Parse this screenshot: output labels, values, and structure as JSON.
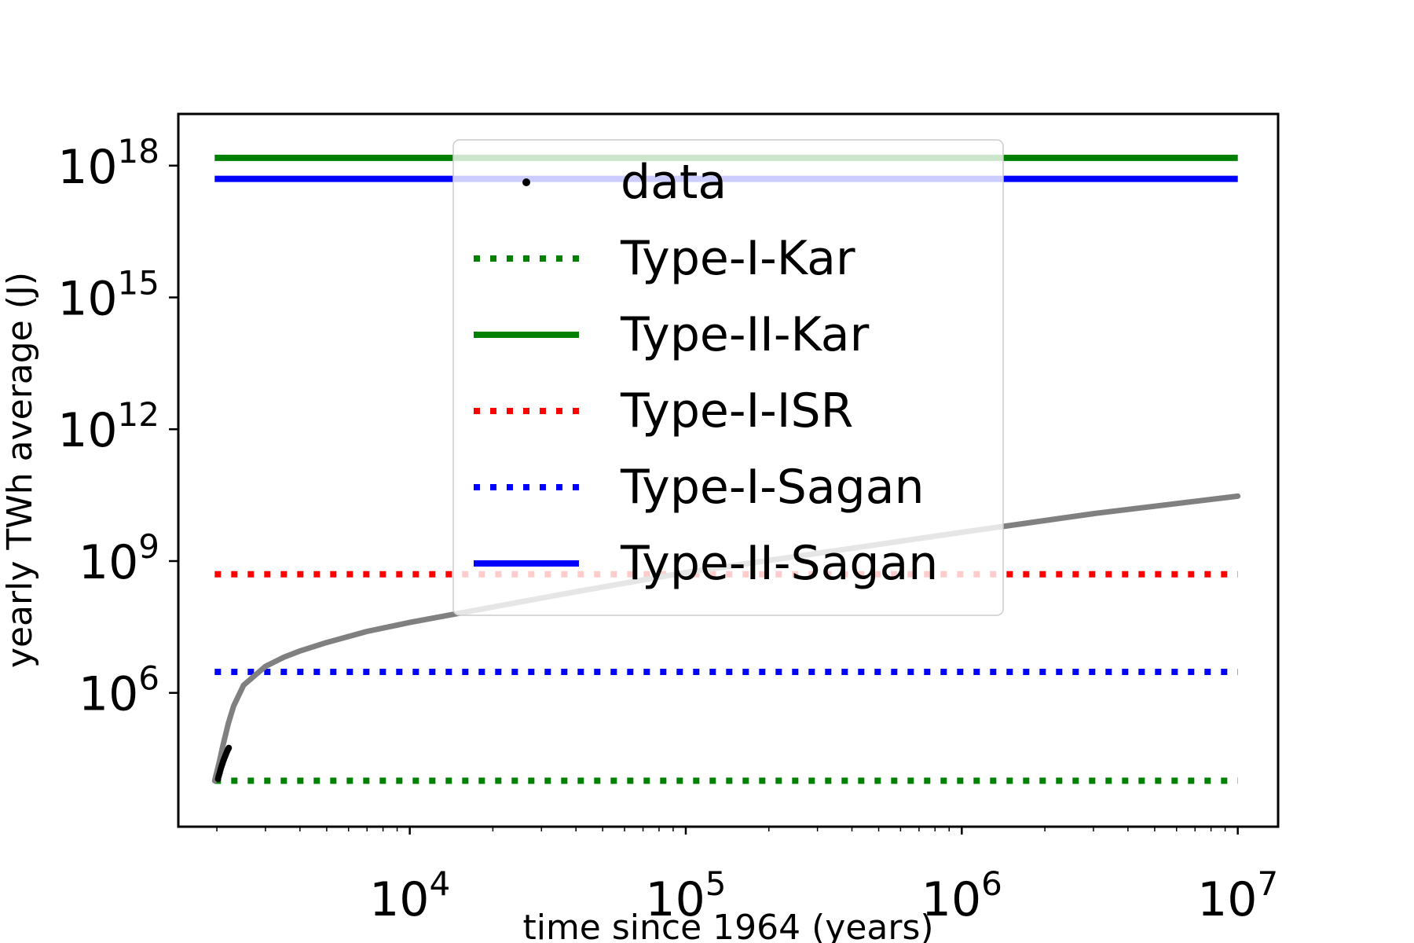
{
  "chart_data": {
    "type": "line",
    "xscale": "log",
    "yscale": "log",
    "xlabel": "time since 1964 (years)",
    "ylabel": "yearly TWh average (J)",
    "xlim": [
      1450,
      14000000
    ],
    "ylim": [
      900,
      15000000000000000000
    ],
    "x_ticks": [
      {
        "value": 10000,
        "base": "10",
        "exp": "4"
      },
      {
        "value": 100000,
        "base": "10",
        "exp": "5"
      },
      {
        "value": 1000000,
        "base": "10",
        "exp": "6"
      },
      {
        "value": 10000000,
        "base": "10",
        "exp": "7"
      }
    ],
    "y_ticks": [
      {
        "value": 1000000,
        "base": "10",
        "exp": "6"
      },
      {
        "value": 1000000000,
        "base": "10",
        "exp": "9"
      },
      {
        "value": 1000000000000,
        "base": "10",
        "exp": "12"
      },
      {
        "value": 1000000000000000,
        "base": "10",
        "exp": "15"
      },
      {
        "value": 1000000000000000000,
        "base": "10",
        "exp": "18"
      }
    ],
    "legend_position": "upper center",
    "series": [
      {
        "name": "data",
        "style": "points",
        "color": "#000000",
        "x": [
          2020,
          2030,
          2040,
          2050,
          2060,
          2070,
          2080,
          2090,
          2100,
          2110,
          2120,
          2130,
          2140,
          2150,
          2160,
          2170,
          2180,
          2190,
          2200,
          2210
        ],
        "y": [
          11000,
          12500,
          14000,
          15500,
          17500,
          19500,
          21500,
          23500,
          25500,
          28000,
          30500,
          33000,
          35500,
          38000,
          41000,
          44000,
          47000,
          50000,
          53000,
          56000
        ]
      },
      {
        "name": "Type-I-Kar",
        "style": "dotted",
        "color": "#008000",
        "x": [
          1964,
          10000000
        ],
        "y": [
          10000,
          10000
        ]
      },
      {
        "name": "Type-II-Kar",
        "style": "solid",
        "color": "#008000",
        "x": [
          1964,
          10000000
        ],
        "y": [
          1500000000000000000,
          1500000000000000000
        ]
      },
      {
        "name": "Type-I-ISR",
        "style": "dotted",
        "color": "#ff0000",
        "x": [
          1964,
          10000000
        ],
        "y": [
          500000000,
          500000000
        ]
      },
      {
        "name": "Type-I-Sagan",
        "style": "dotted",
        "color": "#0000ff",
        "x": [
          1964,
          10000000
        ],
        "y": [
          3000000,
          3000000
        ]
      },
      {
        "name": "Type-II-Sagan",
        "style": "solid",
        "color": "#0000ff",
        "x": [
          1964,
          10000000
        ],
        "y": [
          500000000000000000,
          500000000000000000
        ]
      }
    ],
    "fit_curve": {
      "color": "#808080",
      "x": [
        1964,
        2000,
        2050,
        2100,
        2200,
        2300,
        2500,
        3000,
        3500,
        4000,
        5000,
        7000,
        10000,
        20000,
        40000,
        100000,
        300000,
        1000000,
        3000000,
        10000000
      ],
      "y": [
        10000,
        16000,
        30000,
        60000,
        200000,
        500000,
        1500000,
        4000000,
        6500000,
        9000000,
        14000000,
        25000000,
        40000000,
        90000000,
        200000000,
        550000000,
        1500000000,
        4500000000,
        12000000000,
        30000000000
      ]
    }
  }
}
